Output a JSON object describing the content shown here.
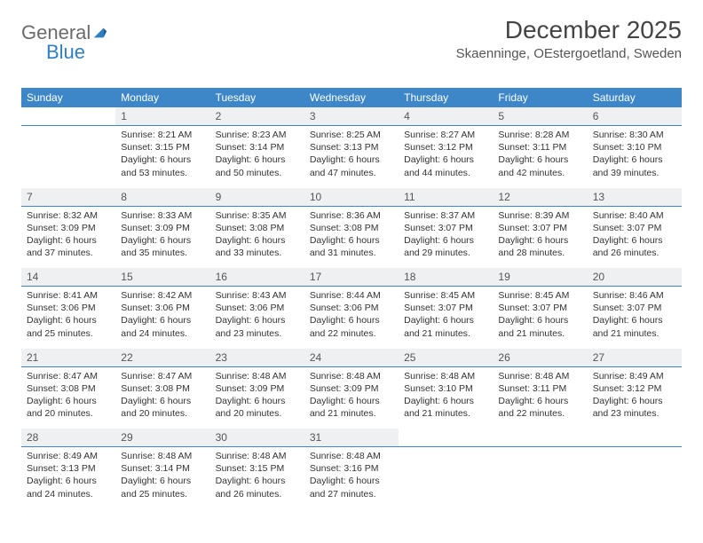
{
  "logo": {
    "part1": "General",
    "part2": "Blue"
  },
  "title": "December 2025",
  "location": "Skaenninge, OEstergoetland, Sweden",
  "colors": {
    "header_bg": "#3d87c9",
    "header_text": "#ffffff",
    "daynum_bg": "#eef0f2",
    "daynum_border": "#3d87c9",
    "body_text": "#333333",
    "logo_gray": "#6b6b6b",
    "logo_blue": "#2f7fc2"
  },
  "weekdays": [
    "Sunday",
    "Monday",
    "Tuesday",
    "Wednesday",
    "Thursday",
    "Friday",
    "Saturday"
  ],
  "weeks": [
    {
      "nums": [
        "",
        "1",
        "2",
        "3",
        "4",
        "5",
        "6"
      ],
      "cells": [
        {
          "sunrise": "",
          "sunset": "",
          "daylight": ""
        },
        {
          "sunrise": "Sunrise: 8:21 AM",
          "sunset": "Sunset: 3:15 PM",
          "daylight": "Daylight: 6 hours and 53 minutes."
        },
        {
          "sunrise": "Sunrise: 8:23 AM",
          "sunset": "Sunset: 3:14 PM",
          "daylight": "Daylight: 6 hours and 50 minutes."
        },
        {
          "sunrise": "Sunrise: 8:25 AM",
          "sunset": "Sunset: 3:13 PM",
          "daylight": "Daylight: 6 hours and 47 minutes."
        },
        {
          "sunrise": "Sunrise: 8:27 AM",
          "sunset": "Sunset: 3:12 PM",
          "daylight": "Daylight: 6 hours and 44 minutes."
        },
        {
          "sunrise": "Sunrise: 8:28 AM",
          "sunset": "Sunset: 3:11 PM",
          "daylight": "Daylight: 6 hours and 42 minutes."
        },
        {
          "sunrise": "Sunrise: 8:30 AM",
          "sunset": "Sunset: 3:10 PM",
          "daylight": "Daylight: 6 hours and 39 minutes."
        }
      ]
    },
    {
      "nums": [
        "7",
        "8",
        "9",
        "10",
        "11",
        "12",
        "13"
      ],
      "cells": [
        {
          "sunrise": "Sunrise: 8:32 AM",
          "sunset": "Sunset: 3:09 PM",
          "daylight": "Daylight: 6 hours and 37 minutes."
        },
        {
          "sunrise": "Sunrise: 8:33 AM",
          "sunset": "Sunset: 3:09 PM",
          "daylight": "Daylight: 6 hours and 35 minutes."
        },
        {
          "sunrise": "Sunrise: 8:35 AM",
          "sunset": "Sunset: 3:08 PM",
          "daylight": "Daylight: 6 hours and 33 minutes."
        },
        {
          "sunrise": "Sunrise: 8:36 AM",
          "sunset": "Sunset: 3:08 PM",
          "daylight": "Daylight: 6 hours and 31 minutes."
        },
        {
          "sunrise": "Sunrise: 8:37 AM",
          "sunset": "Sunset: 3:07 PM",
          "daylight": "Daylight: 6 hours and 29 minutes."
        },
        {
          "sunrise": "Sunrise: 8:39 AM",
          "sunset": "Sunset: 3:07 PM",
          "daylight": "Daylight: 6 hours and 28 minutes."
        },
        {
          "sunrise": "Sunrise: 8:40 AM",
          "sunset": "Sunset: 3:07 PM",
          "daylight": "Daylight: 6 hours and 26 minutes."
        }
      ]
    },
    {
      "nums": [
        "14",
        "15",
        "16",
        "17",
        "18",
        "19",
        "20"
      ],
      "cells": [
        {
          "sunrise": "Sunrise: 8:41 AM",
          "sunset": "Sunset: 3:06 PM",
          "daylight": "Daylight: 6 hours and 25 minutes."
        },
        {
          "sunrise": "Sunrise: 8:42 AM",
          "sunset": "Sunset: 3:06 PM",
          "daylight": "Daylight: 6 hours and 24 minutes."
        },
        {
          "sunrise": "Sunrise: 8:43 AM",
          "sunset": "Sunset: 3:06 PM",
          "daylight": "Daylight: 6 hours and 23 minutes."
        },
        {
          "sunrise": "Sunrise: 8:44 AM",
          "sunset": "Sunset: 3:06 PM",
          "daylight": "Daylight: 6 hours and 22 minutes."
        },
        {
          "sunrise": "Sunrise: 8:45 AM",
          "sunset": "Sunset: 3:07 PM",
          "daylight": "Daylight: 6 hours and 21 minutes."
        },
        {
          "sunrise": "Sunrise: 8:45 AM",
          "sunset": "Sunset: 3:07 PM",
          "daylight": "Daylight: 6 hours and 21 minutes."
        },
        {
          "sunrise": "Sunrise: 8:46 AM",
          "sunset": "Sunset: 3:07 PM",
          "daylight": "Daylight: 6 hours and 21 minutes."
        }
      ]
    },
    {
      "nums": [
        "21",
        "22",
        "23",
        "24",
        "25",
        "26",
        "27"
      ],
      "cells": [
        {
          "sunrise": "Sunrise: 8:47 AM",
          "sunset": "Sunset: 3:08 PM",
          "daylight": "Daylight: 6 hours and 20 minutes."
        },
        {
          "sunrise": "Sunrise: 8:47 AM",
          "sunset": "Sunset: 3:08 PM",
          "daylight": "Daylight: 6 hours and 20 minutes."
        },
        {
          "sunrise": "Sunrise: 8:48 AM",
          "sunset": "Sunset: 3:09 PM",
          "daylight": "Daylight: 6 hours and 20 minutes."
        },
        {
          "sunrise": "Sunrise: 8:48 AM",
          "sunset": "Sunset: 3:09 PM",
          "daylight": "Daylight: 6 hours and 21 minutes."
        },
        {
          "sunrise": "Sunrise: 8:48 AM",
          "sunset": "Sunset: 3:10 PM",
          "daylight": "Daylight: 6 hours and 21 minutes."
        },
        {
          "sunrise": "Sunrise: 8:48 AM",
          "sunset": "Sunset: 3:11 PM",
          "daylight": "Daylight: 6 hours and 22 minutes."
        },
        {
          "sunrise": "Sunrise: 8:49 AM",
          "sunset": "Sunset: 3:12 PM",
          "daylight": "Daylight: 6 hours and 23 minutes."
        }
      ]
    },
    {
      "nums": [
        "28",
        "29",
        "30",
        "31",
        "",
        "",
        ""
      ],
      "cells": [
        {
          "sunrise": "Sunrise: 8:49 AM",
          "sunset": "Sunset: 3:13 PM",
          "daylight": "Daylight: 6 hours and 24 minutes."
        },
        {
          "sunrise": "Sunrise: 8:48 AM",
          "sunset": "Sunset: 3:14 PM",
          "daylight": "Daylight: 6 hours and 25 minutes."
        },
        {
          "sunrise": "Sunrise: 8:48 AM",
          "sunset": "Sunset: 3:15 PM",
          "daylight": "Daylight: 6 hours and 26 minutes."
        },
        {
          "sunrise": "Sunrise: 8:48 AM",
          "sunset": "Sunset: 3:16 PM",
          "daylight": "Daylight: 6 hours and 27 minutes."
        },
        {
          "sunrise": "",
          "sunset": "",
          "daylight": ""
        },
        {
          "sunrise": "",
          "sunset": "",
          "daylight": ""
        },
        {
          "sunrise": "",
          "sunset": "",
          "daylight": ""
        }
      ]
    }
  ]
}
